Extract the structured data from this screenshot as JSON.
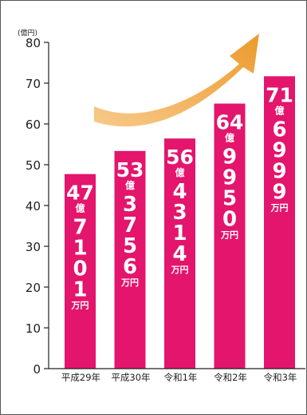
{
  "chart_data": {
    "type": "bar",
    "unit_label": "(億円)",
    "y_ticks": [
      "0",
      "10",
      "20",
      "30",
      "40",
      "50",
      "60",
      "70",
      "80"
    ],
    "ylim": [
      0,
      80
    ],
    "categories": [
      "平成29年",
      "平成30年",
      "令和1年",
      "令和2年",
      "令和3年"
    ],
    "values": [
      47.71,
      53.3756,
      56.4314,
      64.995,
      71.6999
    ],
    "labels": [
      {
        "big": "47",
        "oku": "億",
        "digits": "7101",
        "man": "万円"
      },
      {
        "big": "53",
        "oku": "億",
        "digits": "3756",
        "man": "万円"
      },
      {
        "big": "56",
        "oku": "億",
        "digits": "4314",
        "man": "万円"
      },
      {
        "big": "64",
        "oku": "億",
        "digits": "9950",
        "man": "万円"
      },
      {
        "big": "71",
        "oku": "億",
        "digits": "6999",
        "man": "万円"
      }
    ],
    "colors": {
      "bar": "#e3156d",
      "arrow": "#f0a63d",
      "axis": "#222222"
    }
  }
}
